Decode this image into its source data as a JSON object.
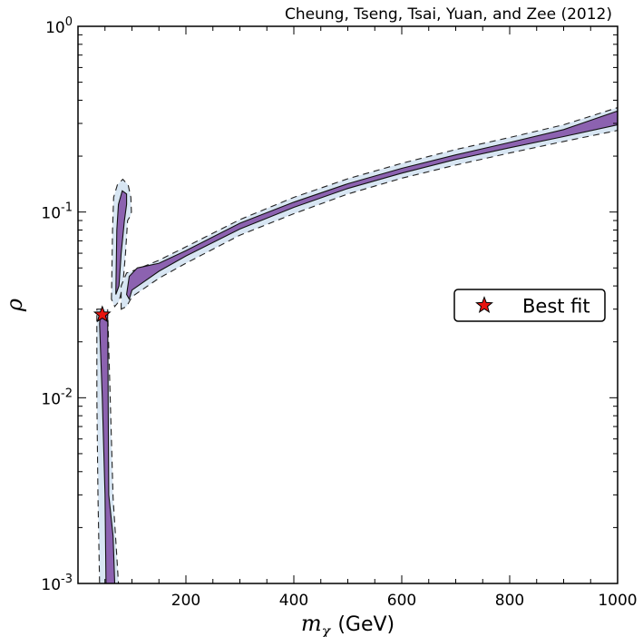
{
  "chart_data": {
    "type": "area",
    "title": "Cheung, Tseng, Tsai, Yuan, and Zee (2012)",
    "xlabel_symbol": "m",
    "xlabel_sub": "χ",
    "xlabel_unit": "(GeV)",
    "ylabel": "ρ",
    "xlim": [
      0,
      1000
    ],
    "ylim": [
      0.001,
      1
    ],
    "yscale": "log",
    "x_ticks": [
      200,
      400,
      600,
      800,
      1000
    ],
    "x_tick_labels": [
      "200",
      "400",
      "600",
      "800",
      "1000"
    ],
    "y_ticks": [
      {
        "value": 0.001,
        "base": "10",
        "exp": "-3"
      },
      {
        "value": 0.01,
        "base": "10",
        "exp": "-2"
      },
      {
        "value": 0.1,
        "base": "10",
        "exp": "-1"
      },
      {
        "value": 1,
        "base": "10",
        "exp": "0"
      }
    ],
    "legend": {
      "placement": "right",
      "label": "Best fit"
    },
    "best_fit": {
      "x": 45,
      "y": 0.028
    },
    "colors": {
      "inner_region": "#8c62b0",
      "outer_region": "#d8e6f3",
      "best_fit_marker": "#e8140f",
      "axes": "#000000"
    },
    "regions": {
      "outer_vertical_band": [
        [
          35,
          0.03
        ],
        [
          55,
          0.03
        ],
        [
          65,
          0.0029
        ],
        [
          72,
          0.0014
        ],
        [
          75,
          0.001
        ],
        [
          40,
          0.001
        ],
        [
          37,
          0.003
        ],
        [
          35,
          0.01
        ]
      ],
      "inner_vertical_band": [
        [
          42,
          0.029
        ],
        [
          55,
          0.028
        ],
        [
          57,
          0.003
        ],
        [
          65,
          0.0018
        ],
        [
          68,
          0.001
        ],
        [
          52,
          0.001
        ],
        [
          50,
          0.003
        ],
        [
          45,
          0.01
        ],
        [
          40,
          0.025
        ]
      ],
      "outer_hook": [
        [
          62,
          0.034
        ],
        [
          64,
          0.08
        ],
        [
          66,
          0.12
        ],
        [
          73,
          0.14
        ],
        [
          83,
          0.15
        ],
        [
          93,
          0.14
        ],
        [
          98,
          0.12
        ],
        [
          99,
          0.1
        ],
        [
          97,
          0.095
        ],
        [
          92,
          0.09
        ],
        [
          88,
          0.06
        ],
        [
          83,
          0.04
        ],
        [
          76,
          0.033
        ],
        [
          68,
          0.031
        ]
      ],
      "inner_hook": [
        [
          70,
          0.036
        ],
        [
          72,
          0.08
        ],
        [
          75,
          0.11
        ],
        [
          82,
          0.13
        ],
        [
          90,
          0.125
        ],
        [
          90,
          0.11
        ],
        [
          86,
          0.09
        ],
        [
          80,
          0.06
        ],
        [
          76,
          0.04
        ]
      ],
      "outer_main_band": [
        [
          80,
          0.03
        ],
        [
          80,
          0.04
        ],
        [
          90,
          0.047
        ],
        [
          100,
          0.048
        ],
        [
          150,
          0.055
        ],
        [
          200,
          0.065
        ],
        [
          300,
          0.091
        ],
        [
          400,
          0.12
        ],
        [
          500,
          0.151
        ],
        [
          600,
          0.183
        ],
        [
          700,
          0.217
        ],
        [
          800,
          0.252
        ],
        [
          900,
          0.295
        ],
        [
          1000,
          0.365
        ],
        [
          1000,
          0.275
        ],
        [
          900,
          0.24
        ],
        [
          800,
          0.208
        ],
        [
          700,
          0.179
        ],
        [
          600,
          0.152
        ],
        [
          500,
          0.125
        ],
        [
          400,
          0.098
        ],
        [
          300,
          0.075
        ],
        [
          200,
          0.053
        ],
        [
          150,
          0.044
        ],
        [
          100,
          0.035
        ],
        [
          90,
          0.031
        ]
      ],
      "inner_main_band": [
        [
          90,
          0.036
        ],
        [
          95,
          0.045
        ],
        [
          110,
          0.05
        ],
        [
          150,
          0.053
        ],
        [
          200,
          0.062
        ],
        [
          300,
          0.087
        ],
        [
          400,
          0.113
        ],
        [
          500,
          0.142
        ],
        [
          600,
          0.172
        ],
        [
          700,
          0.203
        ],
        [
          800,
          0.237
        ],
        [
          900,
          0.278
        ],
        [
          1000,
          0.35
        ],
        [
          1000,
          0.295
        ],
        [
          900,
          0.255
        ],
        [
          800,
          0.222
        ],
        [
          700,
          0.192
        ],
        [
          600,
          0.162
        ],
        [
          500,
          0.134
        ],
        [
          400,
          0.106
        ],
        [
          300,
          0.081
        ],
        [
          200,
          0.058
        ],
        [
          150,
          0.048
        ],
        [
          100,
          0.038
        ],
        [
          95,
          0.034
        ]
      ]
    }
  }
}
